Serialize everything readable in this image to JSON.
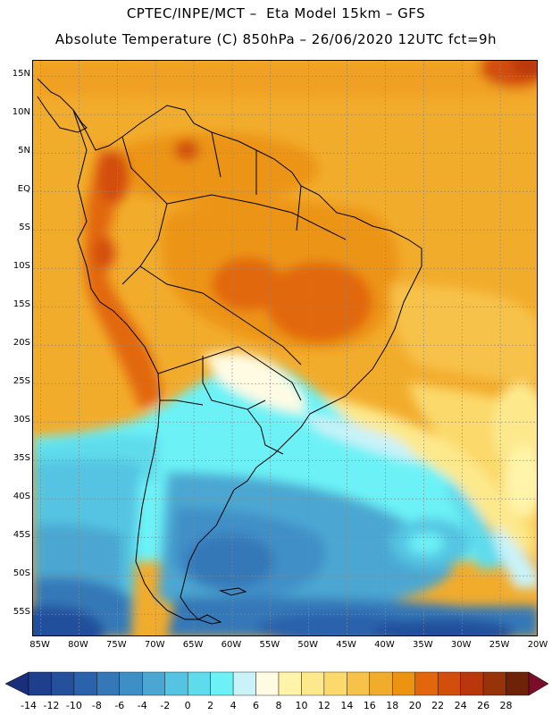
{
  "header": {
    "line1": "CPTEC/INPE/MCT –  Eta Model 15km – GFS",
    "line2": "Absolute Temperature (C) 850hPa – 26/06/2020 12UTC fct=9h"
  },
  "map": {
    "lat_labels": [
      "15N",
      "10N",
      "5N",
      "EQ",
      "5S",
      "10S",
      "15S",
      "20S",
      "25S",
      "30S",
      "35S",
      "40S",
      "45S",
      "50S",
      "55S"
    ],
    "lon_labels": [
      "85W",
      "80W",
      "75W",
      "70W",
      "65W",
      "60W",
      "55W",
      "50W",
      "45W",
      "40W",
      "35W",
      "30W",
      "25W",
      "20W"
    ],
    "lat_range": [
      17,
      -58
    ],
    "lon_range": [
      -86,
      -20
    ]
  },
  "colorbar": {
    "labels": [
      "-14",
      "-12",
      "-10",
      "-8",
      "-6",
      "-4",
      "-2",
      "0",
      "2",
      "4",
      "6",
      "8",
      "10",
      "12",
      "14",
      "16",
      "18",
      "20",
      "22",
      "24",
      "26",
      "28"
    ],
    "colors": [
      "#1f3f8c",
      "#24509c",
      "#2b62ac",
      "#3478b8",
      "#3f8fc7",
      "#4ba7d2",
      "#55c4e2",
      "#5fdcec",
      "#6cf2f6",
      "#c9f2f9",
      "#fffbe3",
      "#fff4a9",
      "#fde98c",
      "#fbd96a",
      "#f7c24a",
      "#f2ac2c",
      "#ec9412",
      "#e2670c",
      "#d34e0b",
      "#b9370a",
      "#973309",
      "#6e2208"
    ],
    "below_color": "#1a2f7a",
    "above_color": "#7a0e2a"
  }
}
